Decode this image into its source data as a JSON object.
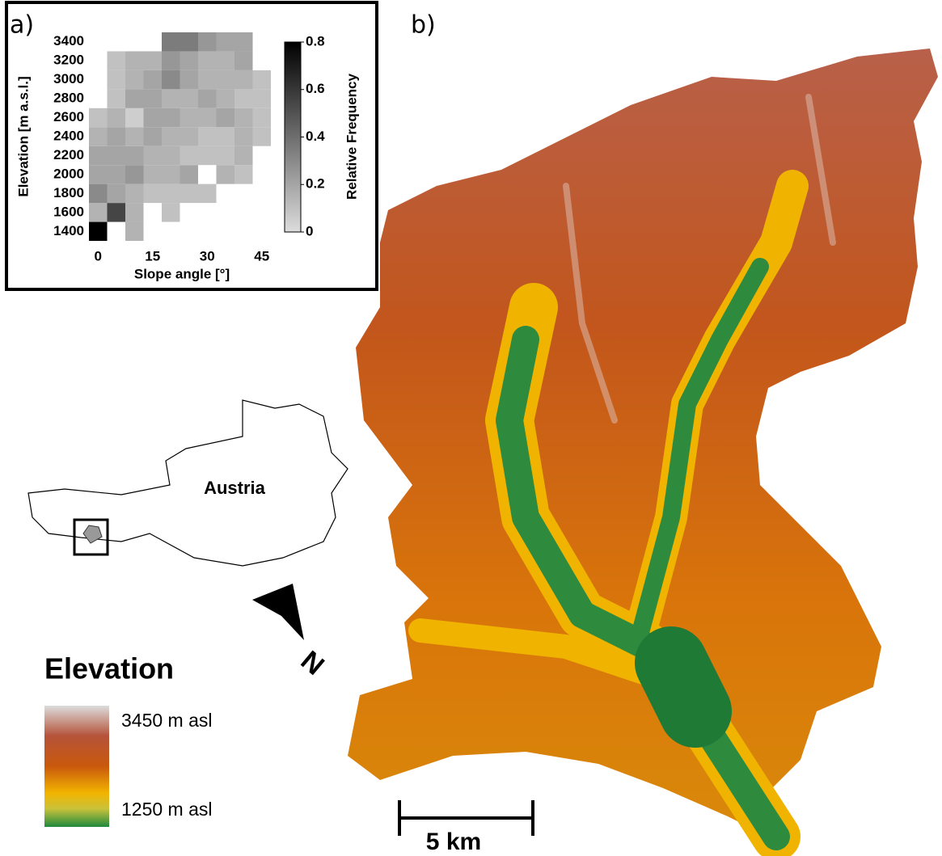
{
  "chart_data": {
    "type": "heatmap",
    "panel_label": "a)",
    "xlabel": "Slope angle [°]",
    "ylabel": "Elevation [m a.s.l.]",
    "colorbar_label": "Relative Frequency",
    "x": [
      0,
      5,
      10,
      15,
      20,
      25,
      30,
      35,
      40,
      45
    ],
    "y": [
      1400,
      1600,
      1800,
      2000,
      2200,
      2400,
      2600,
      2800,
      3000,
      3200,
      3400
    ],
    "z": [
      [
        0.8,
        null,
        0.15,
        null,
        null,
        null,
        null,
        null,
        null,
        null
      ],
      [
        0.15,
        0.55,
        0.15,
        null,
        0.1,
        null,
        null,
        null,
        null,
        null
      ],
      [
        0.3,
        0.2,
        0.15,
        0.1,
        0.1,
        0.1,
        0.1,
        null,
        null,
        null
      ],
      [
        0.2,
        0.2,
        0.25,
        0.15,
        0.15,
        0.2,
        null,
        0.15,
        0.1,
        null
      ],
      [
        0.2,
        0.2,
        0.2,
        0.15,
        0.15,
        0.1,
        0.1,
        0.1,
        0.15,
        null
      ],
      [
        0.15,
        0.2,
        0.15,
        0.2,
        0.15,
        0.15,
        0.1,
        0.1,
        0.15,
        0.1
      ],
      [
        0.1,
        0.15,
        0.05,
        0.2,
        0.2,
        0.15,
        0.15,
        0.2,
        0.15,
        0.1
      ],
      [
        null,
        0.1,
        0.2,
        0.2,
        0.15,
        0.15,
        0.2,
        0.15,
        0.1,
        0.1
      ],
      [
        null,
        0.1,
        0.15,
        0.2,
        0.3,
        0.2,
        0.15,
        0.15,
        0.15,
        0.1
      ],
      [
        null,
        0.1,
        0.15,
        0.15,
        0.25,
        0.2,
        0.15,
        0.15,
        0.2,
        null
      ],
      [
        null,
        null,
        null,
        null,
        0.35,
        0.35,
        0.25,
        0.2,
        0.2,
        null
      ]
    ],
    "xlim": [
      -2.5,
      47.5
    ],
    "ylim": [
      1300,
      3500
    ],
    "xticks": [
      0,
      15,
      30,
      45
    ],
    "yticks": [
      1400,
      1600,
      1800,
      2000,
      2200,
      2400,
      2600,
      2800,
      3000,
      3200,
      3400
    ],
    "clim": [
      0,
      0.8
    ],
    "cticks": [
      0,
      0.2,
      0.4,
      0.6,
      0.8
    ]
  },
  "map": {
    "panel_label": "b)",
    "country": "Austria",
    "north": "N",
    "legend_title": "Elevation",
    "legend_max": "3450 m asl",
    "legend_min": "1250 m asl",
    "scale": "5 km"
  }
}
